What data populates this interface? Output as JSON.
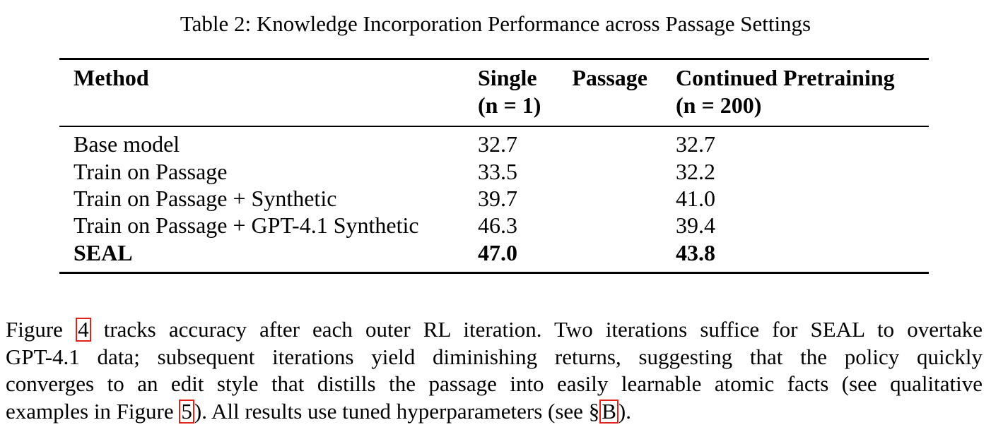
{
  "table": {
    "caption": "Table 2: Knowledge Incorporation Performance across Passage Settings",
    "headers": {
      "method": "Method",
      "single_word1": "Single",
      "single_word2": "Passage",
      "single_n": "(n = 1)",
      "continued": "Continued Pretraining",
      "continued_n": "(n = 200)"
    },
    "rows": [
      {
        "method": "Base model",
        "single": "32.7",
        "continued": "32.7",
        "bold": false
      },
      {
        "method": "Train on Passage",
        "single": "33.5",
        "continued": "32.2",
        "bold": false
      },
      {
        "method": "Train on Passage + Synthetic",
        "single": "39.7",
        "continued": "41.0",
        "bold": false
      },
      {
        "method": "Train on Passage + GPT-4.1 Synthetic",
        "single": "46.3",
        "continued": "39.4",
        "bold": false
      },
      {
        "method": "SEAL",
        "single": "47.0",
        "continued": "43.8",
        "bold": true
      }
    ]
  },
  "paragraph": {
    "line1_pre": "Figure ",
    "line1_ref": "4",
    "line1_post": " tracks accuracy after each outer RL iteration. Two iterations suffice for SEAL to overtake",
    "line2": "GPT-4.1 data; subsequent iterations yield diminishing returns, suggesting that the policy quickly",
    "line3": "converges to an edit style that distills the passage into easily learnable atomic facts (see qualitative",
    "line4_pre": "examples in Figure ",
    "line4_ref1": "5",
    "line4_mid": "). All results use tuned hyperparameters (see §",
    "line4_ref2": "B",
    "line4_post": ")."
  },
  "colors": {
    "link_box": "#e0241b",
    "text": "#000000",
    "background": "#ffffff"
  }
}
